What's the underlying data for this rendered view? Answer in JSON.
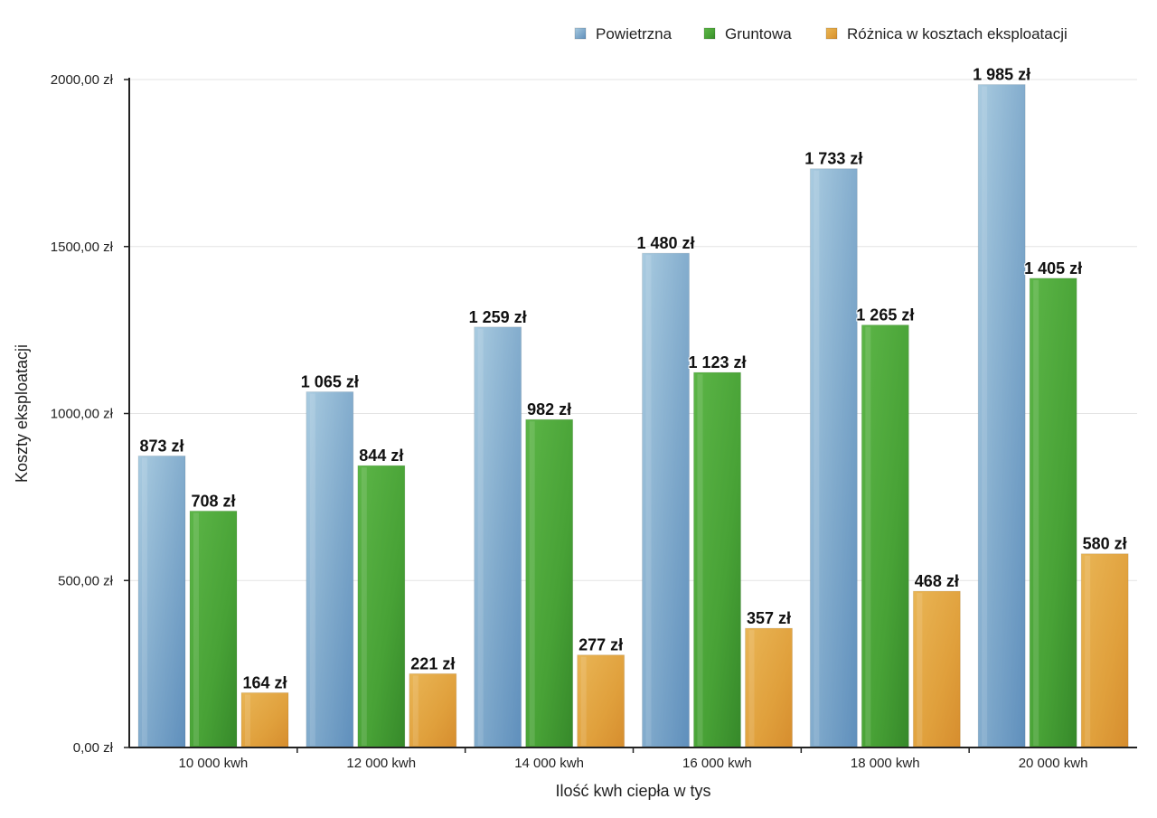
{
  "chart_data": {
    "type": "bar",
    "categories": [
      "10 000 kwh",
      "12 000 kwh",
      "14 000 kwh",
      "16 000 kwh",
      "18 000 kwh",
      "20 000 kwh"
    ],
    "series": [
      {
        "name": "Powietrzna",
        "color": "#7ea6c8",
        "values": [
          873,
          1065,
          1259,
          1480,
          1733,
          1985
        ],
        "labels": [
          "873 zł",
          "1 065 zł",
          "1 259 zł",
          "1 480 zł",
          "1 733 zł",
          "1 985 zł"
        ]
      },
      {
        "name": "Gruntowa",
        "color": "#4fa93c",
        "values": [
          708,
          844,
          982,
          1123,
          1265,
          1405
        ],
        "labels": [
          "708 zł",
          "844 zł",
          "982 zł",
          "1 123 zł",
          "1 265 zł",
          "1 405 zł"
        ]
      },
      {
        "name": "Różnica w kosztach eksploatacji",
        "color": "#e5a53f",
        "values": [
          164,
          221,
          277,
          357,
          468,
          580
        ],
        "labels": [
          "164 zł",
          "221 zł",
          "277 zł",
          "357 zł",
          "468 zł",
          "580 zł"
        ]
      }
    ],
    "yticks": [
      0,
      500,
      1000,
      1500,
      2000
    ],
    "ytick_labels": [
      "0,00 zł",
      "500,00 zł",
      "1000,00 zł",
      "1500,00 zł",
      "2000,00 zł"
    ],
    "ylim": [
      0,
      2000
    ],
    "xlabel": "Ilość kwh ciepła w tys",
    "ylabel": "Koszty eksploatacji",
    "grid": true,
    "legend_position": "top-right"
  }
}
